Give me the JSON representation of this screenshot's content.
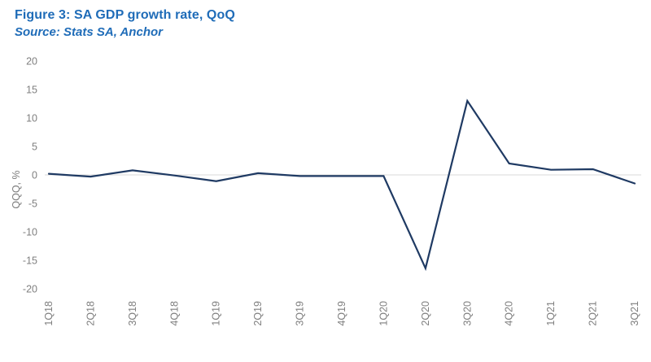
{
  "header": {
    "title": "Figure 3: SA GDP growth rate, QoQ",
    "source": "Source: Stats SA, Anchor"
  },
  "colors": {
    "title_blue": "#1f6cb8",
    "line_navy": "#1f3a63",
    "tick_gray": "#7f7f7f",
    "zero_gridline": "#d9d9d9",
    "background": "#ffffff"
  },
  "chart_data": {
    "type": "line",
    "title": "Figure 3: SA GDP growth rate, QoQ",
    "subtitle": "Source: Stats SA, Anchor",
    "xlabel": "",
    "ylabel": "QQQ, %",
    "ylim": [
      -20,
      20
    ],
    "yticks": [
      20,
      15,
      10,
      5,
      0,
      -5,
      -10,
      -15,
      -20
    ],
    "grid": "zero-line-only",
    "legend_position": "none",
    "categories": [
      "1Q18",
      "2Q18",
      "3Q18",
      "4Q18",
      "1Q19",
      "2Q19",
      "3Q19",
      "4Q19",
      "1Q20",
      "2Q20",
      "3Q20",
      "4Q20",
      "1Q21",
      "2Q21",
      "3Q21"
    ],
    "series": [
      {
        "name": "SA GDP growth rate QoQ (%)",
        "values": [
          0.2,
          -0.3,
          0.8,
          -0.1,
          -1.1,
          0.3,
          -0.2,
          -0.2,
          -0.2,
          -16.4,
          13.0,
          2.0,
          0.9,
          1.0,
          -1.5
        ]
      }
    ]
  }
}
